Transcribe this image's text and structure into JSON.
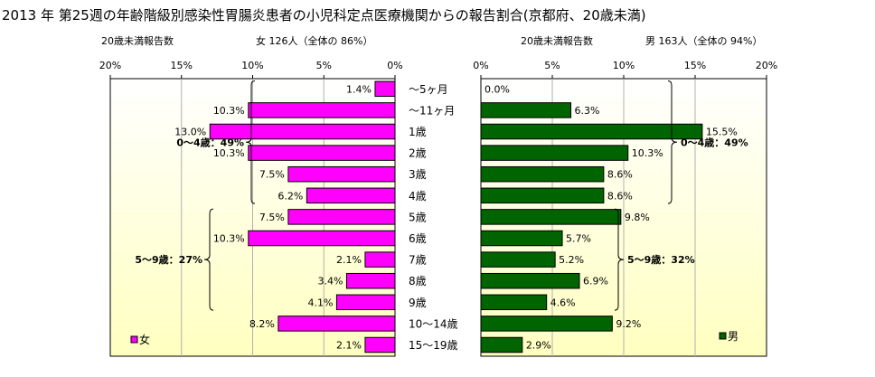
{
  "title": "2013 年 第25週の年齢階級別感染性胃腸炎患者の小児科定点医療機関からの報告割合(京都府、20歳未満)",
  "charts": {
    "female_subtitle": "20歳未満報告数",
    "female_count_label": "女  126人（全体の  86%）",
    "male_subtitle": "20歳未満報告数",
    "male_count_label": "男  163人（全体の  94%）"
  },
  "colors": {
    "female": "#ff00ff",
    "male": "#006400",
    "background_top": "#ffffff",
    "background_bottom": "#ffffc0"
  },
  "chart_data": [
    {
      "type": "bar",
      "orientation": "horizontal-reversed",
      "legend": "女",
      "legend_position": "bottom-left",
      "categories": [
        "～5ヶ月",
        "～11ヶ月",
        "1歳",
        "2歳",
        "3歳",
        "4歳",
        "5歳",
        "6歳",
        "7歳",
        "8歳",
        "9歳",
        "10～14歳",
        "15～19歳"
      ],
      "values": [
        1.4,
        10.3,
        13.0,
        10.3,
        7.5,
        6.2,
        7.5,
        10.3,
        2.1,
        3.4,
        4.1,
        8.2,
        2.1
      ],
      "data_labels": [
        "1.4%",
        "10.3%",
        "13.0%",
        "10.3%",
        "7.5%",
        "6.2%",
        "7.5%",
        "10.3%",
        "2.1%",
        "3.4%",
        "4.1%",
        "8.2%",
        "2.1%"
      ],
      "xlim": [
        0,
        20
      ],
      "ticks": [
        "20%",
        "15%",
        "10%",
        "5%",
        "0%"
      ],
      "annotations": [
        {
          "text": "0～4歳：49%",
          "from": 0,
          "to": 5
        },
        {
          "text": "5～9歳：27%",
          "from": 6,
          "to": 10
        }
      ]
    },
    {
      "type": "bar",
      "orientation": "horizontal",
      "legend": "男",
      "legend_position": "bottom-right",
      "categories": [
        "～5ヶ月",
        "～11ヶ月",
        "1歳",
        "2歳",
        "3歳",
        "4歳",
        "5歳",
        "6歳",
        "7歳",
        "8歳",
        "9歳",
        "10～14歳",
        "15～19歳"
      ],
      "values": [
        0.0,
        6.3,
        15.5,
        10.3,
        8.6,
        8.6,
        9.8,
        5.7,
        5.2,
        6.9,
        4.6,
        9.2,
        2.9
      ],
      "data_labels": [
        "0.0%",
        "6.3%",
        "15.5%",
        "10.3%",
        "8.6%",
        "8.6%",
        "9.8%",
        "5.7%",
        "5.2%",
        "6.9%",
        "4.6%",
        "9.2%",
        "2.9%"
      ],
      "xlim": [
        0,
        20
      ],
      "ticks": [
        "0%",
        "5%",
        "10%",
        "15%",
        "20%"
      ],
      "annotations": [
        {
          "text": "0～4歳：49%",
          "from": 0,
          "to": 5
        },
        {
          "text": "5～9歳：32%",
          "from": 6,
          "to": 10
        }
      ]
    }
  ]
}
